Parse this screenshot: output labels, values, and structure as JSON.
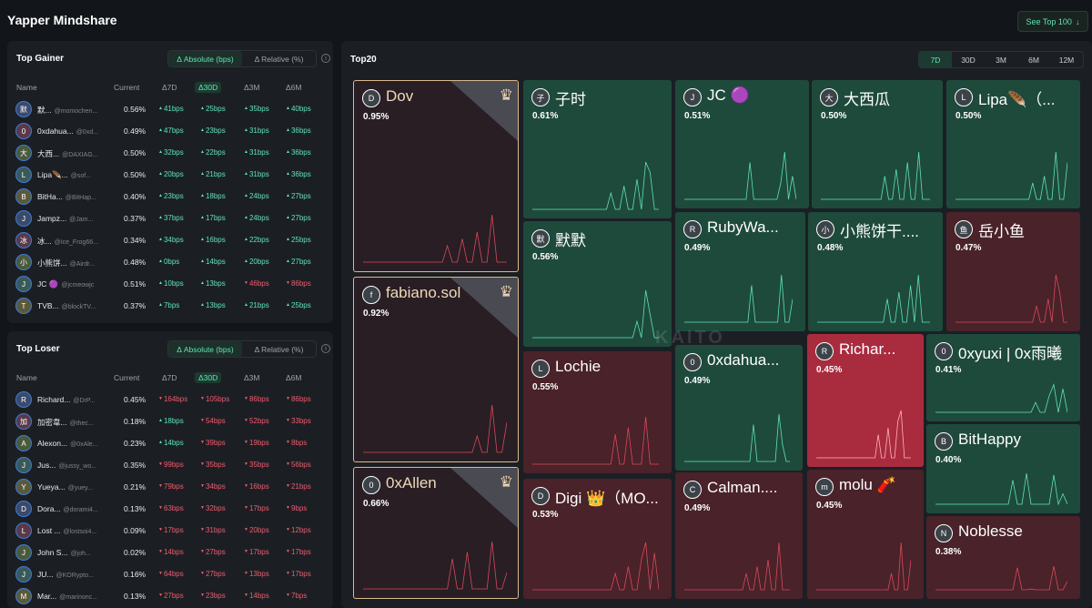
{
  "header": {
    "title": "Yapper Mindshare",
    "see_top": "See Top 100",
    "see_top_icon": "arrow-down-icon"
  },
  "gainer": {
    "title": "Top Gainer",
    "seg": [
      "Δ Absolute (bps)",
      "Δ Relative (%)"
    ],
    "cols": [
      "Name",
      "Current",
      "Δ7D",
      "Δ30D",
      "Δ3M",
      "Δ6M"
    ],
    "rows": [
      {
        "name": "默...",
        "handle": "@momochen...",
        "cur": "0.56%",
        "v": [
          "41bps",
          "25bps",
          "35bps",
          "40bps"
        ],
        "av": "默"
      },
      {
        "name": "0xdahua...",
        "handle": "@0xd...",
        "cur": "0.49%",
        "v": [
          "47bps",
          "23bps",
          "31bps",
          "36bps"
        ],
        "av": "0"
      },
      {
        "name": "大西...",
        "handle": "@DAXIAG...",
        "cur": "0.50%",
        "v": [
          "32bps",
          "22bps",
          "31bps",
          "36bps"
        ],
        "av": "大"
      },
      {
        "name": "Lipa🪶...",
        "handle": "@sof...",
        "cur": "0.50%",
        "v": [
          "20bps",
          "21bps",
          "31bps",
          "36bps"
        ],
        "av": "L"
      },
      {
        "name": "BitHa...",
        "handle": "@BitHap...",
        "cur": "0.40%",
        "v": [
          "23bps",
          "18bps",
          "24bps",
          "27bps"
        ],
        "av": "B"
      },
      {
        "name": "Jampz...",
        "handle": "@Jam...",
        "cur": "0.37%",
        "v": [
          "37bps",
          "17bps",
          "24bps",
          "27bps"
        ],
        "av": "J"
      },
      {
        "name": "冰...",
        "handle": "@Ice_Frog66...",
        "cur": "0.34%",
        "v": [
          "34bps",
          "16bps",
          "22bps",
          "25bps"
        ],
        "av": "冰"
      },
      {
        "name": "小熊饼...",
        "handle": "@Airdr...",
        "cur": "0.48%",
        "v": [
          "0bps",
          "14bps",
          "20bps",
          "27bps"
        ],
        "av": "小"
      },
      {
        "name": "JC 🟣",
        "handle": "@jcmeowjc",
        "cur": "0.51%",
        "v": [
          "10bps",
          "13bps",
          "46bps",
          "86bps"
        ],
        "av": "J",
        "dirs": [
          "u",
          "u",
          "d",
          "d"
        ]
      },
      {
        "name": "TVB...",
        "handle": "@blockTV...",
        "cur": "0.37%",
        "v": [
          "7bps",
          "13bps",
          "21bps",
          "25bps"
        ],
        "av": "T"
      }
    ]
  },
  "loser": {
    "title": "Top Loser",
    "seg": [
      "Δ Absolute (bps)",
      "Δ Relative (%)"
    ],
    "cols": [
      "Name",
      "Current",
      "Δ7D",
      "Δ30D",
      "Δ3M",
      "Δ6M"
    ],
    "rows": [
      {
        "name": "Richard...",
        "handle": "@DrP...",
        "cur": "0.45%",
        "v": [
          "164bps",
          "105bps",
          "86bps",
          "86bps"
        ],
        "av": "R",
        "dirs": [
          "d",
          "d",
          "d",
          "d"
        ]
      },
      {
        "name": "加密韋...",
        "handle": "@thec...",
        "cur": "0.18%",
        "v": [
          "18bps",
          "54bps",
          "52bps",
          "33bps"
        ],
        "av": "加",
        "dirs": [
          "u",
          "d",
          "d",
          "d"
        ]
      },
      {
        "name": "Alexon...",
        "handle": "@0xAle...",
        "cur": "0.23%",
        "v": [
          "14bps",
          "39bps",
          "19bps",
          "8bps"
        ],
        "av": "A",
        "dirs": [
          "u",
          "d",
          "d",
          "d"
        ]
      },
      {
        "name": "Jus...",
        "handle": "@jussy_wo...",
        "cur": "0.35%",
        "v": [
          "99bps",
          "35bps",
          "35bps",
          "56bps"
        ],
        "av": "J",
        "dirs": [
          "d",
          "d",
          "d",
          "d"
        ]
      },
      {
        "name": "Yueya...",
        "handle": "@yuey...",
        "cur": "0.21%",
        "v": [
          "79bps",
          "34bps",
          "16bps",
          "21bps"
        ],
        "av": "Y",
        "dirs": [
          "d",
          "d",
          "d",
          "d"
        ]
      },
      {
        "name": "Dora...",
        "handle": "@dorami4...",
        "cur": "0.13%",
        "v": [
          "63bps",
          "32bps",
          "17bps",
          "9bps"
        ],
        "av": "D",
        "dirs": [
          "d",
          "d",
          "d",
          "d"
        ]
      },
      {
        "name": "Lost ...",
        "handle": "@lostsoi4...",
        "cur": "0.09%",
        "v": [
          "17bps",
          "31bps",
          "20bps",
          "12bps"
        ],
        "av": "L",
        "dirs": [
          "d",
          "d",
          "d",
          "d"
        ]
      },
      {
        "name": "John S...",
        "handle": "@joh...",
        "cur": "0.02%",
        "v": [
          "14bps",
          "27bps",
          "17bps",
          "17bps"
        ],
        "av": "J",
        "dirs": [
          "d",
          "d",
          "d",
          "d"
        ]
      },
      {
        "name": "JU...",
        "handle": "@KORypto...",
        "cur": "0.16%",
        "v": [
          "64bps",
          "27bps",
          "13bps",
          "17bps"
        ],
        "av": "J",
        "dirs": [
          "d",
          "d",
          "d",
          "d"
        ]
      },
      {
        "name": "Mar...",
        "handle": "@marinonc...",
        "cur": "0.13%",
        "v": [
          "27bps",
          "23bps",
          "14bps",
          "7bps"
        ],
        "av": "M",
        "dirs": [
          "d",
          "d",
          "d",
          "d"
        ]
      }
    ]
  },
  "top20": {
    "title": "Top20",
    "tabs": [
      "7D",
      "30D",
      "3M",
      "6M",
      "12M"
    ],
    "active_tab": "7D",
    "watermark": "KAITO",
    "tiles": [
      {
        "name": "Dov",
        "pct": "0.95%",
        "rank": "1",
        "av": "D"
      },
      {
        "name": "fabiano.sol",
        "pct": "0.92%",
        "rank": "2",
        "av": "f"
      },
      {
        "name": "0xAllen",
        "pct": "0.66%",
        "rank": "3",
        "av": "0"
      },
      {
        "name": "子时",
        "pct": "0.61%",
        "av": "子"
      },
      {
        "name": "默默",
        "pct": "0.56%",
        "av": "默"
      },
      {
        "name": "Lochie",
        "pct": "0.55%",
        "av": "L"
      },
      {
        "name": "Digi 👑（MO...",
        "pct": "0.53%",
        "av": "D"
      },
      {
        "name": "JC 🟣",
        "pct": "0.51%",
        "av": "J"
      },
      {
        "name": "大西瓜",
        "pct": "0.50%",
        "av": "大"
      },
      {
        "name": "Lipa🪶（...",
        "pct": "0.50%",
        "av": "L"
      },
      {
        "name": "RubyWa...",
        "pct": "0.49%",
        "av": "R"
      },
      {
        "name": "小熊饼干....",
        "pct": "0.48%",
        "av": "小"
      },
      {
        "name": "岳小鱼",
        "pct": "0.47%",
        "av": "鱼"
      },
      {
        "name": "0xdahua...",
        "pct": "0.49%",
        "av": "0"
      },
      {
        "name": "Richar...",
        "pct": "0.45%",
        "av": "R"
      },
      {
        "name": "0xyuxi | 0x雨曦",
        "pct": "0.41%",
        "av": "0"
      },
      {
        "name": "BitHappy",
        "pct": "0.40%",
        "av": "B"
      },
      {
        "name": "Calman....",
        "pct": "0.49%",
        "av": "C"
      },
      {
        "name": "molu 🧨",
        "pct": "0.45%",
        "av": "m"
      },
      {
        "name": "Noblesse",
        "pct": "0.38%",
        "av": "N"
      }
    ]
  },
  "colors": {
    "green_tile": "#1e4a3c",
    "red_tile": "#4a2229",
    "accent": "#5fe3b8",
    "loss": "#f05a6c"
  }
}
